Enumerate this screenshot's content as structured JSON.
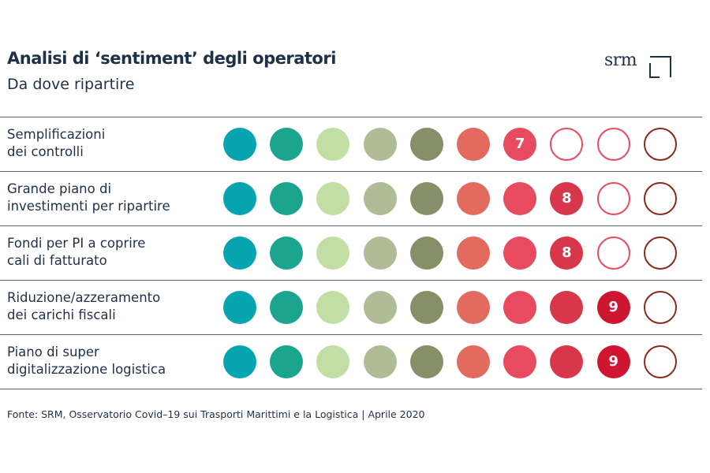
{
  "title": "Analisi di ‘sentiment’ degli operatori",
  "subtitle": "Da dove ripartire",
  "logo_text": "srm",
  "footer": "Fonte: SRM, Osservatorio Covid–19 sui Trasporti Marittimi e la Logistica | Aprile 2020",
  "colors": {
    "scale": [
      "#08a5b0",
      "#1ba58e",
      "#c2dea4",
      "#b0bc96",
      "#868f67",
      "#e36a5f",
      "#e84a5f",
      "#d8364a",
      "#cf1630",
      "#8b2a1a"
    ],
    "empty_outline_mid": "#e84a5f",
    "empty_outline_end": "#8b2a1a",
    "text": "#1e3148",
    "rule": "#5a6470"
  },
  "chart_data": {
    "type": "table",
    "scale_max": 10,
    "rows": [
      {
        "label": "Semplificazioni\ndei controlli",
        "value": 7
      },
      {
        "label": "Grande piano di\ninvestimenti per ripartire",
        "value": 8
      },
      {
        "label": "Fondi per PI a coprire\ncali di fatturato",
        "value": 8
      },
      {
        "label": "Riduzione/azzeramento\ndei carichi fiscali",
        "value": 9
      },
      {
        "label": "Piano di super\ndigitalizzazione logistica",
        "value": 9
      }
    ]
  }
}
